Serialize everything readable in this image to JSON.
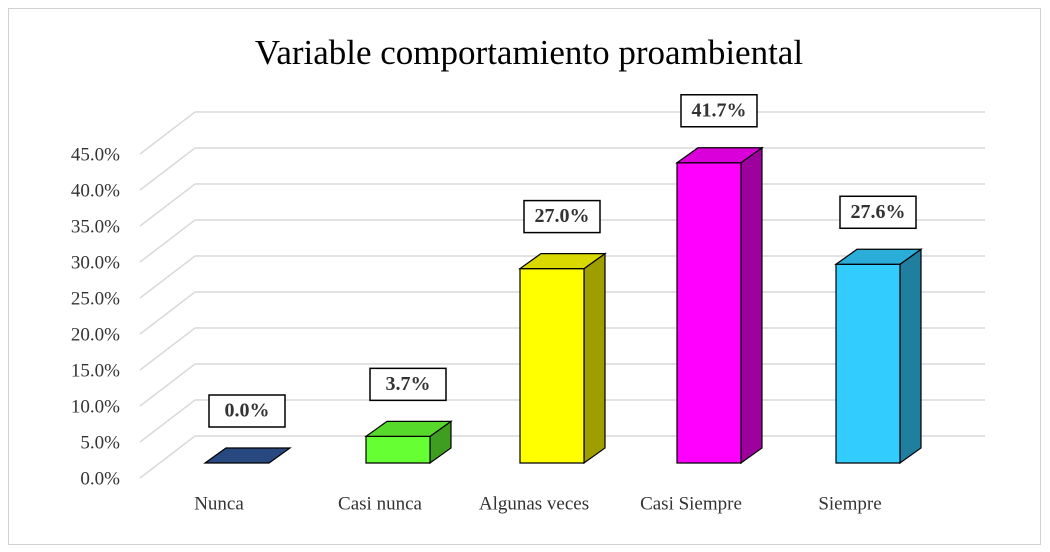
{
  "chart_data": {
    "type": "bar3d",
    "title": "Variable comportamiento proambiental",
    "categories": [
      "Nunca",
      "Casi nunca",
      "Algunas veces",
      "Casi Siempre",
      "Siempre"
    ],
    "values": [
      0.0,
      3.7,
      27.0,
      41.7,
      27.6
    ],
    "value_labels": [
      "0.0%",
      "3.7%",
      "27.0%",
      "41.7%",
      "27.6%"
    ],
    "colors": [
      "#2f5597",
      "#66ff33",
      "#ffff00",
      "#ff00ff",
      "#33ccff"
    ],
    "ylim": [
      0,
      45
    ],
    "yticks": [
      {
        "value": 0,
        "label": "0.0%"
      },
      {
        "value": 5,
        "label": "5.0%"
      },
      {
        "value": 10,
        "label": "10.0%"
      },
      {
        "value": 15,
        "label": "15.0%"
      },
      {
        "value": 20,
        "label": "20.0%"
      },
      {
        "value": 25,
        "label": "25.0%"
      },
      {
        "value": 30,
        "label": "30.0%"
      },
      {
        "value": 35,
        "label": "35.0%"
      },
      {
        "value": 40,
        "label": "40.0%"
      },
      {
        "value": 45,
        "label": "45.0%"
      }
    ],
    "grid": true
  }
}
